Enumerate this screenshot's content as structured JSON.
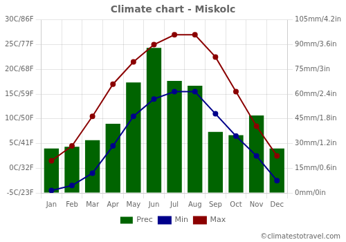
{
  "chart_data": {
    "type": "bar",
    "title": "Climate chart - Miskolc",
    "categories": [
      "Jan",
      "Feb",
      "Mar",
      "Apr",
      "May",
      "Jun",
      "Jul",
      "Aug",
      "Sep",
      "Oct",
      "Nov",
      "Dec"
    ],
    "series": [
      {
        "name": "Prec",
        "type": "bar",
        "color": "#006400",
        "axis": "y2",
        "values": [
          27,
          28,
          32,
          42,
          67,
          88,
          68,
          65,
          37,
          35,
          47,
          27
        ]
      },
      {
        "name": "Min",
        "type": "line",
        "color": "#00008B",
        "marker": "circle",
        "values": [
          -4.5,
          -3.5,
          -1.0,
          4.5,
          10.5,
          14.0,
          15.5,
          15.5,
          11.0,
          6.5,
          2.5,
          -2.5
        ]
      },
      {
        "name": "Max",
        "type": "line",
        "color": "#8B0000",
        "marker": "circle",
        "values": [
          1.5,
          4.5,
          10.5,
          17.0,
          21.5,
          25.0,
          27.0,
          27.0,
          22.5,
          15.5,
          8.5,
          2.5
        ]
      }
    ],
    "ylim": [
      -5,
      30
    ],
    "yticks": [
      {
        "value": -5,
        "label": "-5C/23F"
      },
      {
        "value": 0,
        "label": "0C/32F"
      },
      {
        "value": 5,
        "label": "5C/41F"
      },
      {
        "value": 10,
        "label": "10C/50F"
      },
      {
        "value": 15,
        "label": "15C/59F"
      },
      {
        "value": 20,
        "label": "20C/68F"
      },
      {
        "value": 25,
        "label": "25C/77F"
      },
      {
        "value": 30,
        "label": "30C/86F"
      }
    ],
    "y2lim": [
      0,
      105
    ],
    "y2ticks": [
      {
        "value": 0,
        "label": "0mm/0in"
      },
      {
        "value": 15,
        "label": "15mm/0.6in"
      },
      {
        "value": 30,
        "label": "30mm/1.2in"
      },
      {
        "value": 45,
        "label": "45mm/1.8in"
      },
      {
        "value": 60,
        "label": "60mm/2.4in"
      },
      {
        "value": 75,
        "label": "75mm/3in"
      },
      {
        "value": 90,
        "label": "90mm/3.6in"
      },
      {
        "value": 105,
        "label": "105mm/4.2in"
      }
    ],
    "grid": true,
    "legend": "bottom",
    "annotations": [
      "©climatestotravel.com"
    ]
  }
}
